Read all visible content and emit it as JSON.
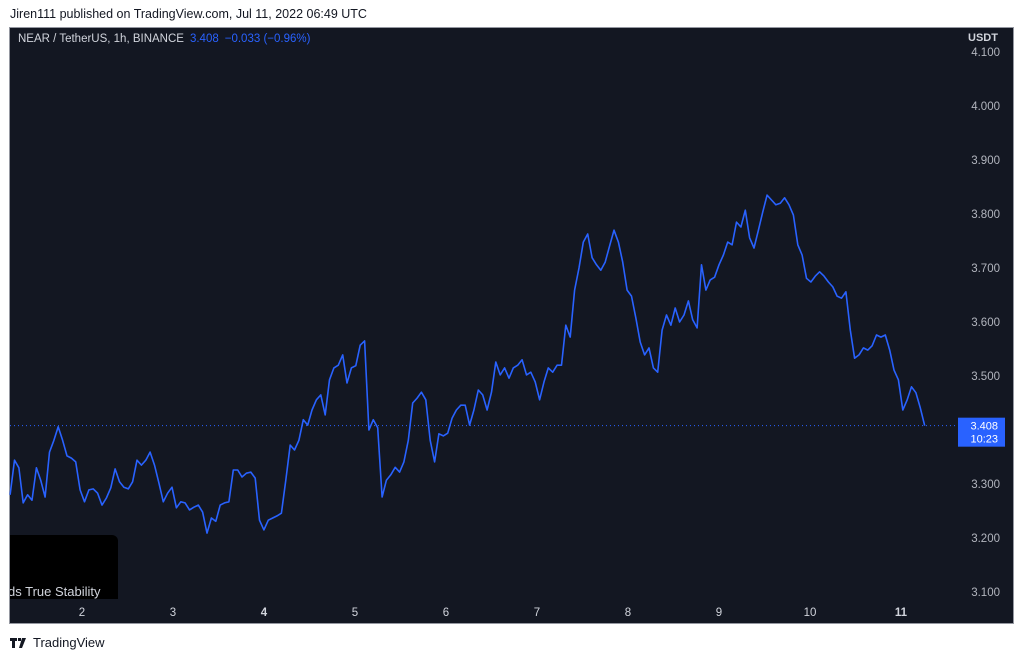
{
  "publisher_line": "Jiren111 published on TradingView.com, Jul 11, 2022 06:49 UTC",
  "legend": {
    "symbol": "NEAR / TetherUS, 1h, BINANCE",
    "price": "3.408",
    "change": "−0.033 (−0.96%)"
  },
  "overlay_text": "ds True Stability",
  "footer": {
    "brand": "TradingView"
  },
  "colors": {
    "line": "#2962ff",
    "background": "#131722",
    "axis_text": "#d1d4dc"
  },
  "chart_data": {
    "type": "line",
    "title": "NEAR / TetherUS, 1h, BINANCE",
    "ylabel": "USDT",
    "ylim": [
      3.1,
      4.1
    ],
    "yticks": [
      "4.100",
      "4.000",
      "3.900",
      "3.800",
      "3.700",
      "3.600",
      "3.500",
      "3.300",
      "3.200",
      "3.100"
    ],
    "xticks": [
      {
        "day": 2,
        "label": "2"
      },
      {
        "day": 3,
        "label": "3"
      },
      {
        "day": 4,
        "label": "4",
        "bold": true
      },
      {
        "day": 5,
        "label": "5"
      },
      {
        "day": 6,
        "label": "6"
      },
      {
        "day": 7,
        "label": "7"
      },
      {
        "day": 8,
        "label": "8"
      },
      {
        "day": 9,
        "label": "9"
      },
      {
        "day": 10,
        "label": "10"
      },
      {
        "day": 11,
        "label": "11",
        "bold": true
      }
    ],
    "x_range_days": [
      1.21,
      11.26
    ],
    "last_price": {
      "value": 3.408,
      "label": "3.408",
      "countdown": "10:23"
    },
    "grid": false,
    "values": [
      3.28,
      3.344,
      3.33,
      3.265,
      3.28,
      3.27,
      3.33,
      3.307,
      3.276,
      3.359,
      3.381,
      3.406,
      3.381,
      3.352,
      3.348,
      3.341,
      3.289,
      3.267,
      3.289,
      3.291,
      3.283,
      3.261,
      3.274,
      3.293,
      3.328,
      3.304,
      3.294,
      3.291,
      3.304,
      3.344,
      3.335,
      3.344,
      3.359,
      3.335,
      3.302,
      3.267,
      3.283,
      3.294,
      3.256,
      3.267,
      3.265,
      3.252,
      3.257,
      3.261,
      3.248,
      3.209,
      3.237,
      3.231,
      3.261,
      3.265,
      3.267,
      3.326,
      3.326,
      3.313,
      3.32,
      3.322,
      3.311,
      3.233,
      3.215,
      3.233,
      3.237,
      3.241,
      3.246,
      3.307,
      3.372,
      3.363,
      3.381,
      3.419,
      3.409,
      3.437,
      3.456,
      3.465,
      3.428,
      3.493,
      3.515,
      3.52,
      3.539,
      3.487,
      3.515,
      3.519,
      3.557,
      3.565,
      3.4,
      3.419,
      3.404,
      3.276,
      3.307,
      3.317,
      3.331,
      3.322,
      3.341,
      3.381,
      3.45,
      3.459,
      3.47,
      3.456,
      3.381,
      3.341,
      3.393,
      3.389,
      3.394,
      3.422,
      3.437,
      3.446,
      3.446,
      3.409,
      3.437,
      3.474,
      3.465,
      3.437,
      3.47,
      3.526,
      3.502,
      3.515,
      3.496,
      3.515,
      3.52,
      3.53,
      3.502,
      3.507,
      3.489,
      3.456,
      3.489,
      3.515,
      3.507,
      3.52,
      3.52,
      3.594,
      3.572,
      3.659,
      3.7,
      3.748,
      3.763,
      3.719,
      3.706,
      3.696,
      3.711,
      3.741,
      3.77,
      3.748,
      3.711,
      3.659,
      3.648,
      3.607,
      3.563,
      3.539,
      3.552,
      3.515,
      3.507,
      3.585,
      3.613,
      3.594,
      3.626,
      3.6,
      3.613,
      3.639,
      3.604,
      3.589,
      3.706,
      3.659,
      3.678,
      3.683,
      3.706,
      3.724,
      3.748,
      3.743,
      3.785,
      3.776,
      3.807,
      3.756,
      3.737,
      3.77,
      3.804,
      3.835,
      3.826,
      3.817,
      3.82,
      3.83,
      3.817,
      3.798,
      3.743,
      3.724,
      3.681,
      3.674,
      3.685,
      3.693,
      3.685,
      3.674,
      3.665,
      3.648,
      3.644,
      3.656,
      3.585,
      3.533,
      3.539,
      3.552,
      3.548,
      3.556,
      3.576,
      3.572,
      3.576,
      3.548,
      3.511,
      3.493,
      3.437,
      3.456,
      3.48,
      3.469,
      3.441,
      3.408
    ]
  }
}
